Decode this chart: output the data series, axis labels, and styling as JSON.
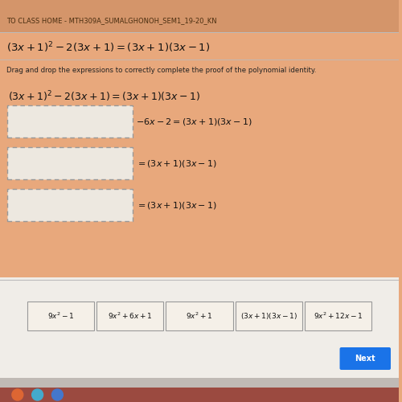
{
  "bg_top_color": "#D4956A",
  "bg_main_color": "#E8A87C",
  "bg_bottom_color": "#f0ede8",
  "title_bar_text": "TO CLASS HOME - MTH309A_SUMALGHONOH_SEM1_19-20_KN",
  "title_bar_text_color": "#4a2e10",
  "main_title": "$(3x+1)^2 - 2(3x+1) = (3x+1)(3x-1)$",
  "subtitle": "Drag and drop the expressions to correctly complete the proof of the polynomial identity.",
  "subtitle_color": "#222222",
  "proof_line0": "$(3x+1)^2 - 2(3x+1) = (3x+1)(3x-1)$",
  "line1_suffix": "$-6x - 2 = (3x+1)(3x-1)$",
  "line2_suffix": "$= (3x+1)(3x-1)$",
  "line3_suffix": "$= (3x+1)(3x-1)$",
  "drag_items": [
    "$9x^2 - 1$",
    "$9x^2 + 6x + 1$",
    "$9x^2 + 1$",
    "$(3x+1)(3x-1)$",
    "$9x^2 + 12x - 1$"
  ],
  "box_fill": "#ede8e0",
  "box_edge": "#999999",
  "drag_box_fill": "#f5f0e8",
  "drag_box_edge": "#999999",
  "next_btn_color": "#1a73e8",
  "next_btn_text": "Next",
  "separator_color": "#bbbbbb",
  "text_color": "#111111",
  "taskbar_color": "#c0bab5",
  "taskbar_icons_color": "#7a5a50"
}
